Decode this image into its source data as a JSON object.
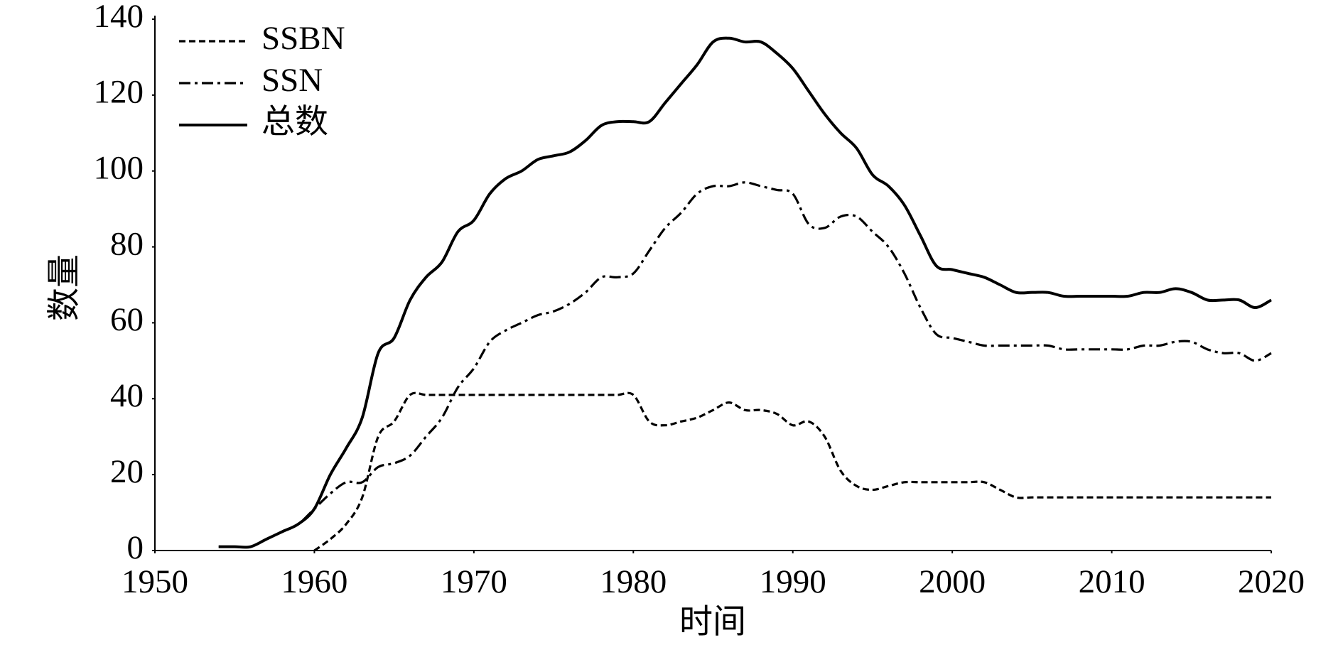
{
  "chart_data": {
    "type": "line",
    "xlabel": "时间",
    "ylabel": "数量",
    "x": [
      1954,
      1955,
      1956,
      1957,
      1958,
      1959,
      1960,
      1961,
      1962,
      1963,
      1964,
      1965,
      1966,
      1967,
      1968,
      1969,
      1970,
      1971,
      1972,
      1973,
      1974,
      1975,
      1976,
      1977,
      1978,
      1979,
      1980,
      1981,
      1982,
      1983,
      1984,
      1985,
      1986,
      1987,
      1988,
      1989,
      1990,
      1991,
      1992,
      1993,
      1994,
      1995,
      1996,
      1997,
      1998,
      1999,
      2000,
      2001,
      2002,
      2003,
      2004,
      2005,
      2006,
      2007,
      2008,
      2009,
      2010,
      2011,
      2012,
      2013,
      2014,
      2015,
      2016,
      2017,
      2018,
      2019,
      2020
    ],
    "series": [
      {
        "name": "SSBN",
        "color": "#000000",
        "linestyle": "dashed",
        "values": [
          null,
          null,
          null,
          null,
          null,
          null,
          0,
          3,
          7,
          14,
          30,
          34,
          41,
          41,
          41,
          41,
          41,
          41,
          41,
          41,
          41,
          41,
          41,
          41,
          41,
          41,
          41,
          34,
          33,
          34,
          35,
          37,
          39,
          37,
          37,
          36,
          33,
          34,
          30,
          21,
          17,
          16,
          17,
          18,
          18,
          18,
          18,
          18,
          18,
          16,
          14,
          14,
          14,
          14,
          14,
          14,
          14,
          14,
          14,
          14,
          14,
          14,
          14,
          14,
          14,
          14,
          14
        ]
      },
      {
        "name": "SSN",
        "color": "#000000",
        "linestyle": "dashdot",
        "values": [
          1,
          1,
          1,
          3,
          5,
          7,
          11,
          15,
          18,
          18,
          22,
          23,
          25,
          30,
          35,
          43,
          48,
          55,
          58,
          60,
          62,
          63,
          65,
          68,
          72,
          72,
          73,
          79,
          85,
          89,
          94,
          96,
          96,
          97,
          96,
          95,
          94,
          86,
          85,
          88,
          88,
          84,
          80,
          73,
          64,
          57,
          56,
          55,
          54,
          54,
          54,
          54,
          54,
          53,
          53,
          53,
          53,
          53,
          54,
          54,
          55,
          55,
          53,
          52,
          52,
          50,
          52
        ]
      },
      {
        "name": "总数",
        "color": "#000000",
        "linestyle": "solid",
        "values": [
          1,
          1,
          1,
          3,
          5,
          7,
          11,
          20,
          27,
          35,
          52,
          56,
          66,
          72,
          76,
          84,
          87,
          94,
          98,
          100,
          103,
          104,
          105,
          108,
          112,
          113,
          113,
          113,
          118,
          123,
          128,
          134,
          135,
          134,
          134,
          131,
          127,
          121,
          115,
          110,
          106,
          99,
          96,
          91,
          83,
          75,
          74,
          73,
          72,
          70,
          68,
          68,
          68,
          67,
          67,
          67,
          67,
          67,
          68,
          68,
          69,
          68,
          66,
          66,
          66,
          64,
          66
        ]
      }
    ],
    "xlim": [
      1950,
      2020
    ],
    "xticks": [
      1950,
      1960,
      1970,
      1980,
      1990,
      2000,
      2010,
      2020
    ],
    "ylim": [
      0,
      140
    ],
    "yticks": [
      0,
      20,
      40,
      60,
      80,
      100,
      120,
      140
    ],
    "grid": false,
    "legend": "upper left"
  }
}
